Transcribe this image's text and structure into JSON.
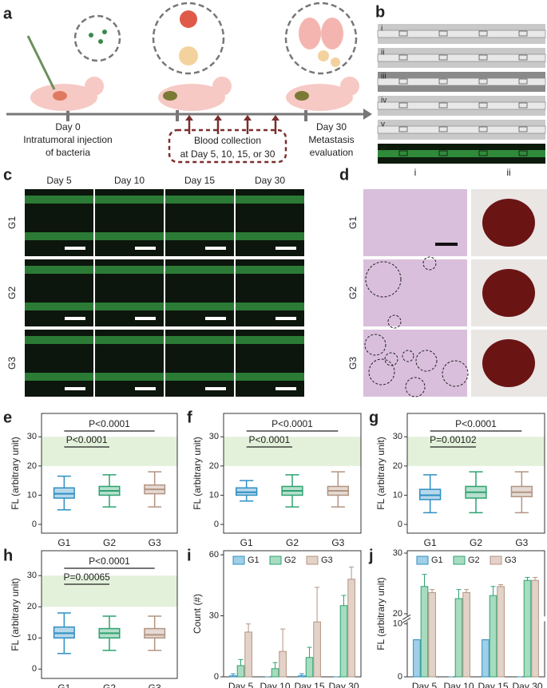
{
  "panel_labels": [
    "a",
    "b",
    "c",
    "d",
    "e",
    "f",
    "g",
    "h",
    "i",
    "j"
  ],
  "panel_a": {
    "day0": "Day 0",
    "injection": [
      "Intratumoral injection",
      "of bacteria"
    ],
    "blood": [
      "Blood collection",
      "at Day 5, 10, 15, or 30"
    ],
    "day30": "Day 30",
    "evaluation": [
      "Metastasis",
      "evaluation"
    ]
  },
  "panel_b": {
    "rows": [
      "i",
      "ii",
      "iii",
      "iv",
      "v",
      "vi"
    ]
  },
  "panel_c": {
    "columns": [
      "Day 5",
      "Day 10",
      "Day 15",
      "Day 30"
    ],
    "rows": [
      "G1",
      "G2",
      "G3"
    ]
  },
  "panel_d": {
    "columns": [
      "i",
      "ii"
    ],
    "rows": [
      "G1",
      "G2",
      "G3"
    ]
  },
  "chart_data": [
    {
      "type": "box",
      "ylabel": "FL (arbitrary unit)",
      "categories": [
        "G1",
        "G2",
        "G3"
      ],
      "colors": [
        "#2f8fc2",
        "#2ea36f",
        "#b39482"
      ],
      "boxes": [
        {
          "whislo": 5,
          "q1": 9,
          "med": 10.5,
          "q3": 12.5,
          "whishi": 16.5
        },
        {
          "whislo": 6,
          "q1": 10,
          "med": 11.5,
          "q3": 13,
          "whishi": 17
        },
        {
          "whislo": 6,
          "q1": 10.5,
          "med": 12,
          "q3": 13.5,
          "whishi": 18
        }
      ],
      "ylim": [
        -3,
        38
      ],
      "yticks": [
        0,
        10,
        20,
        30
      ],
      "band": [
        20,
        30
      ],
      "annotations": [
        "P<0.0001",
        "P<0.0001"
      ]
    },
    {
      "type": "box",
      "ylabel": "FL (arbitrary unit)",
      "categories": [
        "G1",
        "G2",
        "G3"
      ],
      "colors": [
        "#2f8fc2",
        "#2ea36f",
        "#b39482"
      ],
      "boxes": [
        {
          "whislo": 8,
          "q1": 10,
          "med": 11,
          "q3": 12.5,
          "whishi": 15
        },
        {
          "whislo": 6,
          "q1": 10,
          "med": 11.5,
          "q3": 13,
          "whishi": 17
        },
        {
          "whislo": 6,
          "q1": 10,
          "med": 11.5,
          "q3": 13,
          "whishi": 18
        }
      ],
      "ylim": [
        -3,
        38
      ],
      "yticks": [
        0,
        10,
        20,
        30
      ],
      "band": [
        20,
        30
      ],
      "annotations": [
        "P<0.0001",
        "P<0.0001"
      ]
    },
    {
      "type": "box",
      "ylabel": "FL (arbitrary unit)",
      "categories": [
        "G1",
        "G2",
        "G3"
      ],
      "colors": [
        "#2f8fc2",
        "#2ea36f",
        "#b39482"
      ],
      "boxes": [
        {
          "whislo": 4,
          "q1": 8.5,
          "med": 10,
          "q3": 12,
          "whishi": 17
        },
        {
          "whislo": 4,
          "q1": 9,
          "med": 11,
          "q3": 13,
          "whishi": 18
        },
        {
          "whislo": 4,
          "q1": 9.5,
          "med": 11,
          "q3": 13,
          "whishi": 18
        }
      ],
      "ylim": [
        -3,
        38
      ],
      "yticks": [
        0,
        10,
        20,
        30
      ],
      "band": [
        20,
        30
      ],
      "annotations": [
        "P<0.0001",
        "P=0.00102"
      ]
    },
    {
      "type": "box",
      "ylabel": "FL (arbitrary unit)",
      "categories": [
        "G1",
        "G2",
        "G3"
      ],
      "colors": [
        "#2f8fc2",
        "#2ea36f",
        "#b39482"
      ],
      "boxes": [
        {
          "whislo": 5,
          "q1": 10,
          "med": 11.5,
          "q3": 13.5,
          "whishi": 18
        },
        {
          "whislo": 6,
          "q1": 10,
          "med": 11.5,
          "q3": 13,
          "whishi": 17
        },
        {
          "whislo": 6,
          "q1": 10,
          "med": 11,
          "q3": 13,
          "whishi": 17
        }
      ],
      "ylim": [
        -3,
        38
      ],
      "yticks": [
        0,
        10,
        20,
        30
      ],
      "band": [
        20,
        30
      ],
      "annotations": [
        "P<0.0001",
        "P=0.00065"
      ]
    },
    {
      "type": "bar",
      "ylabel": "Count (#)",
      "categories": [
        "Day 5",
        "Day 10",
        "Day 15",
        "Day 30"
      ],
      "series": [
        {
          "name": "G1",
          "color": "#9fd0e8",
          "stroke": "#2f8fc2",
          "values": [
            0.5,
            0,
            0.5,
            0
          ],
          "errors": [
            1,
            0,
            1,
            0
          ]
        },
        {
          "name": "G2",
          "color": "#a7dcc0",
          "stroke": "#2ea36f",
          "values": [
            5.5,
            4,
            9.5,
            35
          ],
          "errors": [
            3,
            3,
            5,
            5
          ]
        },
        {
          "name": "G3",
          "color": "#e3d2c8",
          "stroke": "#b39482",
          "values": [
            22,
            12.5,
            27,
            48
          ],
          "errors": [
            4,
            11,
            17,
            6
          ]
        }
      ],
      "ylim": [
        0,
        62
      ],
      "yticks": [
        0,
        30,
        60
      ]
    },
    {
      "type": "bar",
      "ylabel": "FL (arbitrary unit)",
      "categories": [
        "Day 5",
        "Day 10",
        "Day 15",
        "Day 30"
      ],
      "series": [
        {
          "name": "G1",
          "color": "#9fd0e8",
          "stroke": "#2f8fc2",
          "values": [
            7,
            0,
            7,
            0
          ],
          "errors": [
            0,
            0,
            0,
            0
          ]
        },
        {
          "name": "G2",
          "color": "#a7dcc0",
          "stroke": "#2ea36f",
          "values": [
            24.5,
            22.5,
            23,
            25.5
          ],
          "errors": [
            2,
            1.5,
            1.5,
            0.5
          ]
        },
        {
          "name": "G3",
          "color": "#e3d2c8",
          "stroke": "#b39482",
          "values": [
            23.5,
            23.5,
            24.5,
            25.5
          ],
          "errors": [
            0.5,
            0.5,
            0.3,
            0.5
          ]
        }
      ],
      "ylim": [
        0,
        30
      ],
      "yticks": [
        0,
        10,
        20,
        30
      ],
      "ybreak": [
        10,
        20
      ]
    }
  ]
}
